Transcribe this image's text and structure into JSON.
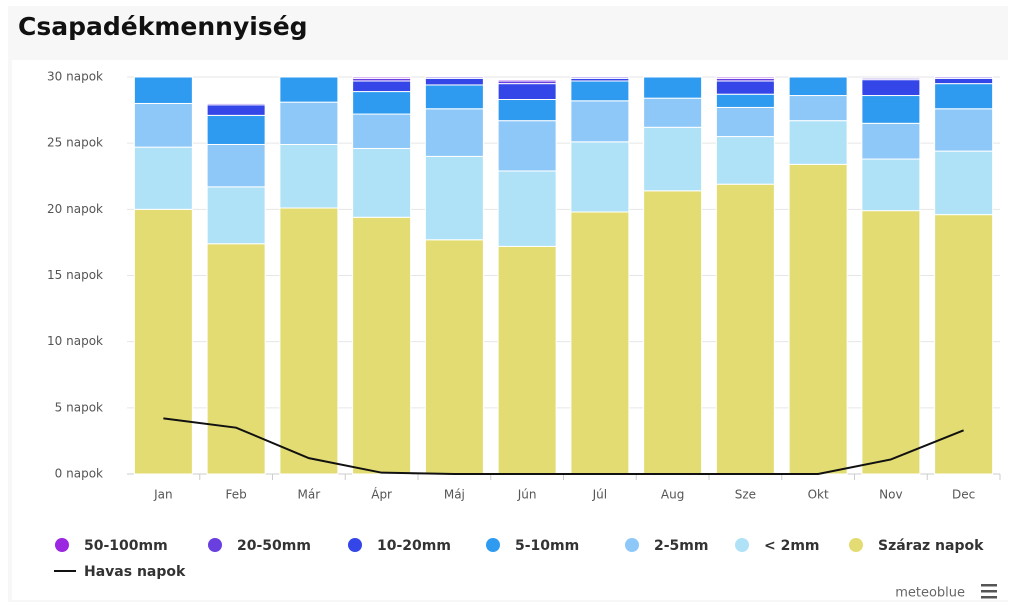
{
  "chart_data": {
    "type": "bar",
    "stacked": true,
    "title": "Csapadékmennyiség",
    "credit": "meteoblue",
    "categories": [
      "Jan",
      "Feb",
      "Már",
      "Ápr",
      "Máj",
      "Jún",
      "Júl",
      "Aug",
      "Sze",
      "Okt",
      "Nov",
      "Dec"
    ],
    "ylim": [
      0,
      30
    ],
    "yticks": [
      {
        "value": 0,
        "label": "0 napok"
      },
      {
        "value": 5,
        "label": "5 napok"
      },
      {
        "value": 10,
        "label": "10 napok"
      },
      {
        "value": 15,
        "label": "15 napok"
      },
      {
        "value": 20,
        "label": "20 napok"
      },
      {
        "value": 25,
        "label": "25 napok"
      },
      {
        "value": 30,
        "label": "30 napok"
      }
    ],
    "grid": true,
    "series": [
      {
        "name": "Száraz napok",
        "color": "#e3dc72",
        "values": [
          20.0,
          17.4,
          20.1,
          19.4,
          17.7,
          17.2,
          19.8,
          21.4,
          21.9,
          23.4,
          19.9,
          19.6
        ]
      },
      {
        "name": "< 2mm",
        "color": "#b0e2f7",
        "values": [
          4.7,
          4.3,
          4.8,
          5.2,
          6.3,
          5.7,
          5.3,
          4.8,
          3.6,
          3.3,
          3.9,
          4.8
        ]
      },
      {
        "name": "2-5mm",
        "color": "#8dc8f8",
        "values": [
          3.3,
          3.2,
          3.2,
          2.6,
          3.6,
          3.8,
          3.1,
          2.2,
          2.2,
          1.9,
          2.7,
          3.2
        ]
      },
      {
        "name": "5-10mm",
        "color": "#2f9bf0",
        "values": [
          2.0,
          2.2,
          1.9,
          1.7,
          1.8,
          1.6,
          1.5,
          1.6,
          1.0,
          1.4,
          2.1,
          1.9
        ]
      },
      {
        "name": "10-20mm",
        "color": "#3546e8",
        "values": [
          0,
          0.8,
          0,
          0.8,
          0.5,
          1.2,
          0.2,
          0,
          1.0,
          0,
          1.2,
          0.4
        ]
      },
      {
        "name": "20-50mm",
        "color": "#6a3fe0",
        "values": [
          0,
          0.1,
          0,
          0.2,
          0.1,
          0.2,
          0.1,
          0,
          0.2,
          0,
          0.1,
          0.1
        ]
      },
      {
        "name": "50-100mm",
        "color": "#9b27e0",
        "values": [
          0,
          0,
          0,
          0.1,
          0,
          0.1,
          0,
          0,
          0.1,
          0,
          0,
          0
        ]
      },
      {
        "name": "Havas napok",
        "type": "line",
        "color": "#111111",
        "values": [
          4.2,
          3.5,
          1.2,
          0.1,
          0,
          0,
          0,
          0,
          0,
          0,
          1.1,
          3.3
        ]
      }
    ]
  }
}
